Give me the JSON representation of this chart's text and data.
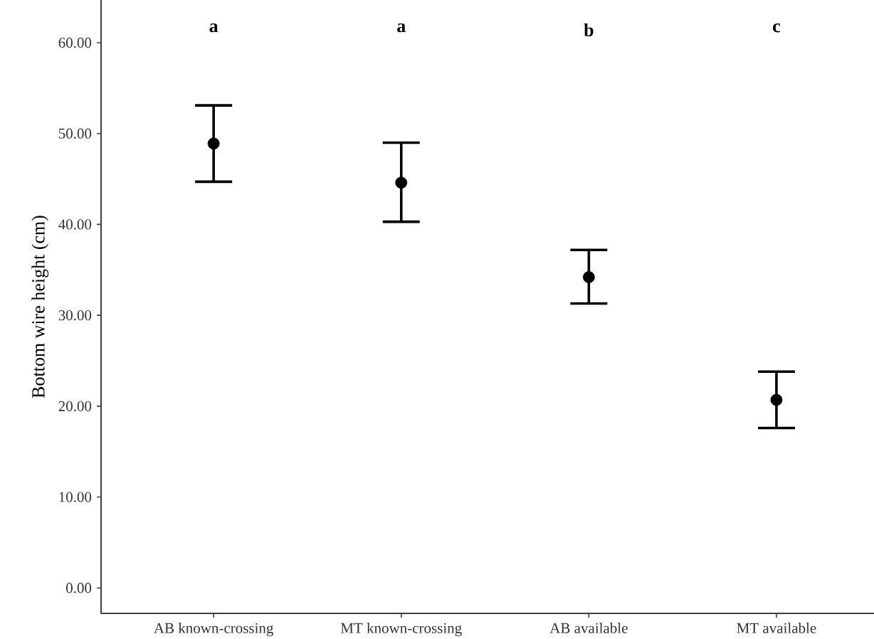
{
  "chart_data": {
    "type": "scatter",
    "ylabel": "Bottom wire height (cm)",
    "categories": [
      "AB known-crossing",
      "MT known-crossing",
      "AB available",
      "MT available"
    ],
    "values": [
      48.9,
      44.6,
      34.2,
      20.7
    ],
    "errors": [
      [
        44.7,
        53.1
      ],
      [
        40.3,
        49.0
      ],
      [
        31.3,
        37.2
      ],
      [
        17.6,
        23.8
      ]
    ],
    "color": "#000000",
    "marker": "circle",
    "ylim": [
      -2.8,
      64.7
    ],
    "yticks": [
      {
        "value": 0,
        "label": "0.00"
      },
      {
        "value": 10,
        "label": "10.00"
      },
      {
        "value": 20,
        "label": "20.00"
      },
      {
        "value": 30,
        "label": "30.00"
      },
      {
        "value": 40,
        "label": "40.00"
      },
      {
        "value": 50,
        "label": "50.00"
      },
      {
        "value": 60,
        "label": "60.00"
      }
    ],
    "grid": false,
    "annotations": [
      "a",
      "a",
      "b",
      "c"
    ]
  }
}
